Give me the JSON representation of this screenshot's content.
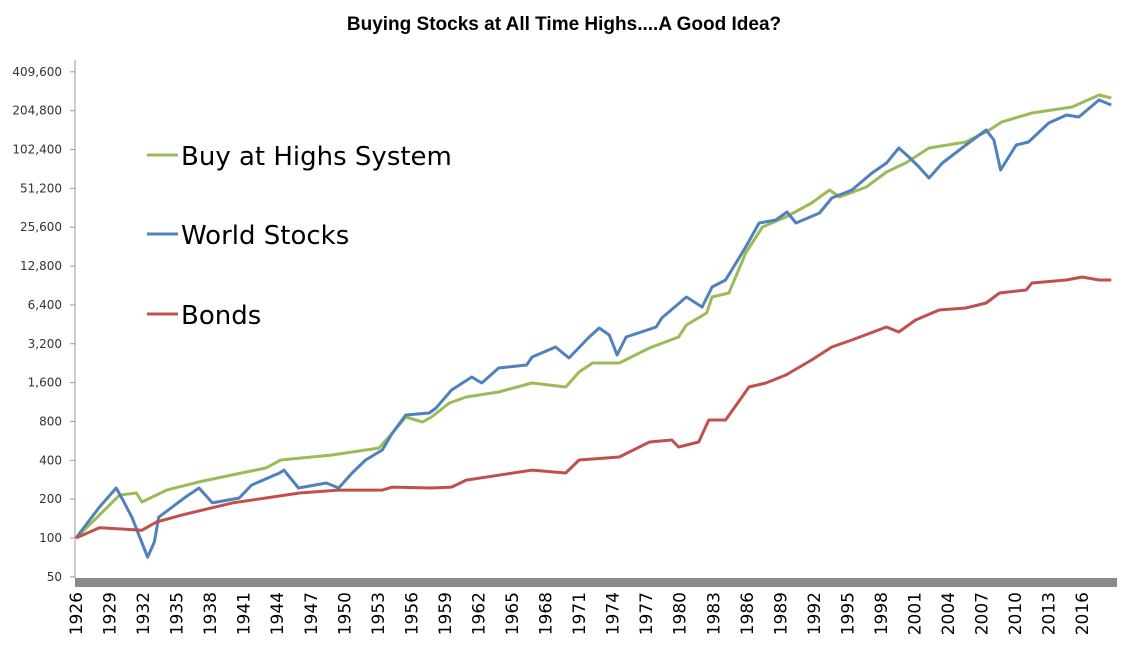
{
  "chart_data": {
    "type": "line",
    "title": "Buying Stocks at All Time Highs....A Good Idea?",
    "xlabel": "",
    "ylabel": "",
    "y_scale": "log2",
    "ylim": [
      50,
      409600
    ],
    "xlim": [
      1926,
      2019
    ],
    "y_ticks": [
      "409,600",
      "204,800",
      "102,400",
      "51,200",
      "25,600",
      "12,800",
      "6,400",
      "3,200",
      "1,600",
      "800",
      "400",
      "200",
      "100",
      "50"
    ],
    "y_tick_values": [
      409600,
      204800,
      102400,
      51200,
      25600,
      12800,
      6400,
      3200,
      1600,
      800,
      400,
      200,
      100,
      50
    ],
    "x_ticks": [
      "1926",
      "1929",
      "1932",
      "1935",
      "1938",
      "1941",
      "1944",
      "1947",
      "1950",
      "1953",
      "1956",
      "1959",
      "1962",
      "1965",
      "1968",
      "1971",
      "1974",
      "1977",
      "1980",
      "1983",
      "1986",
      "1989",
      "1992",
      "1995",
      "1998",
      "2001",
      "2004",
      "2007",
      "2010",
      "2013",
      "2016"
    ],
    "grid": false,
    "legend_position": "top-left",
    "series": [
      {
        "name": "Buy at Highs System",
        "color": "#9bbb59",
        "x": [
          1926,
          1928.1,
          1929.9,
          1931.4,
          1931.9,
          1934.1,
          1937,
          1940,
          1943,
          1944.3,
          1948.9,
          1953.1,
          1954.3,
          1955.5,
          1957,
          1957.8,
          1959.4,
          1960.9,
          1963.8,
          1966.8,
          1969.8,
          1971,
          1972.2,
          1974.6,
          1977.3,
          1979.9,
          1980.6,
          1982.4,
          1982.9,
          1984.4,
          1985.9,
          1987.4,
          1989.5,
          1991.8,
          1993.4,
          1994.3,
          1996.7,
          1998.5,
          2000.2,
          2002.3,
          2005.6,
          2007.7,
          2008.8,
          2011.5,
          2015.1,
          2017.5,
          2018.6
        ],
        "values": [
          100,
          151,
          215,
          223,
          190,
          235,
          272,
          308,
          349,
          402,
          440,
          498,
          651,
          866,
          792,
          866,
          1112,
          1237,
          1353,
          1589,
          1479,
          1933,
          2269,
          2269,
          2966,
          3610,
          4472,
          5540,
          7368,
          7913,
          16150,
          25690,
          30700,
          39430,
          49740,
          43880,
          52440,
          68570,
          80500,
          105200,
          117000,
          145000,
          167300,
          196400,
          218600,
          270800,
          256600
        ]
      },
      {
        "name": "World Stocks",
        "color": "#4f81bd",
        "x": [
          1926,
          1928.1,
          1929.6,
          1930.1,
          1931,
          1932.4,
          1933,
          1933.4,
          1935.8,
          1937,
          1938.2,
          1940.6,
          1941.7,
          1944.2,
          1944.6,
          1945.9,
          1948.4,
          1949.5,
          1950.7,
          1951.9,
          1953.4,
          1954.3,
          1955.5,
          1957.6,
          1958.2,
          1959.6,
          1961.4,
          1962.3,
          1963.8,
          1966.3,
          1966.8,
          1968.9,
          1970.1,
          1971.9,
          1972.8,
          1973.7,
          1974.4,
          1975.2,
          1977.9,
          1978.4,
          1980.6,
          1982,
          1982.9,
          1984.1,
          1985.9,
          1987.1,
          1988.6,
          1989.6,
          1990.4,
          1992.5,
          1993.6,
          1995.4,
          1997.2,
          1998.5,
          1999.6,
          2000.5,
          2001.4,
          2002.3,
          2003.5,
          2005.6,
          2007.4,
          2008.1,
          2008.7,
          2010.1,
          2011.2,
          2013,
          2014.6,
          2015.7,
          2017.5,
          2018.6
        ],
        "values": [
          100,
          174,
          244,
          204,
          145,
          71,
          93,
          145,
          208,
          244,
          187,
          204,
          257,
          319,
          336,
          244,
          267,
          244,
          319,
          402,
          481,
          651,
          897,
          930,
          1017,
          1402,
          1768,
          1589,
          2077,
          2190,
          2526,
          3019,
          2481,
          3610,
          4239,
          3740,
          2618,
          3610,
          4316,
          5066,
          7368,
          6165,
          8811,
          9983,
          17990,
          27600,
          29100,
          33570,
          27600,
          33000,
          43130,
          49740,
          67340,
          80500,
          105200,
          89600,
          74960,
          61600,
          80500,
          111000,
          145000,
          121400,
          71000,
          111000,
          117000,
          164300,
          189600,
          183000,
          247700,
          226500
        ]
      },
      {
        "name": "Bonds",
        "color": "#c0504d",
        "x": [
          1926,
          1928.1,
          1931.9,
          1933.2,
          1935.5,
          1940,
          1946,
          1949.5,
          1953.4,
          1954.3,
          1957.8,
          1959.6,
          1960.9,
          1966.8,
          1969.8,
          1971,
          1974.6,
          1977.3,
          1979.3,
          1979.9,
          1981.7,
          1982.6,
          1984.1,
          1986.2,
          1987.7,
          1989.5,
          1991.8,
          1993.6,
          1995.4,
          1998.5,
          1999.6,
          2001.1,
          2003.2,
          2005.6,
          2007.4,
          2008.6,
          2011,
          2011.5,
          2014.6,
          2016,
          2017.5,
          2018.6
        ],
        "values": [
          100,
          120,
          115,
          133,
          151,
          187,
          223,
          235,
          235,
          248,
          244,
          248,
          281,
          336,
          319,
          402,
          424,
          554,
          575,
          507,
          554,
          821,
          821,
          1479,
          1589,
          1832,
          2394,
          3019,
          3421,
          4316,
          3945,
          4888,
          5844,
          6056,
          6620,
          7913,
          8350,
          9460,
          9983,
          10530,
          9983,
          9983
        ]
      }
    ]
  }
}
